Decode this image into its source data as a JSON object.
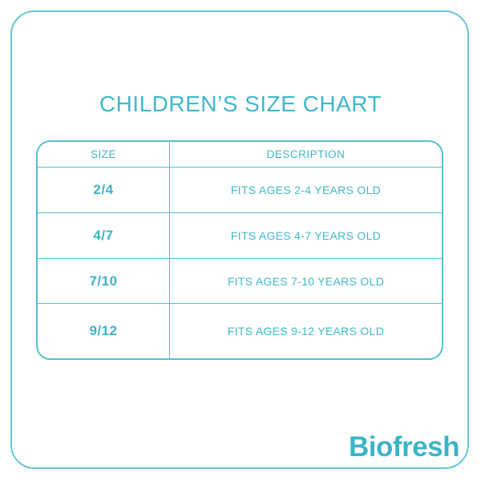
{
  "title": "CHILDREN’S SIZE CHART",
  "chart_data": {
    "type": "table",
    "title": "CHILDREN’S SIZE CHART",
    "columns": [
      "SIZE",
      "DESCRIPTION"
    ],
    "rows": [
      [
        "2/4",
        "FITS AGES 2-4 YEARS OLD"
      ],
      [
        "4/7",
        "FITS AGES 4-7 YEARS OLD"
      ],
      [
        "7/10",
        "FITS AGES 7-10 YEARS OLD"
      ],
      [
        "9/12",
        "FITS AGES 9-12 YEARS OLD"
      ]
    ]
  },
  "brand": {
    "logo_text": "Biofresh"
  },
  "colors": {
    "accent_text": "#41b8c9",
    "accent_bold": "#3cb4c7",
    "line": "#54c0d1",
    "frame": "#66c6d5",
    "background": "#ffffff"
  }
}
